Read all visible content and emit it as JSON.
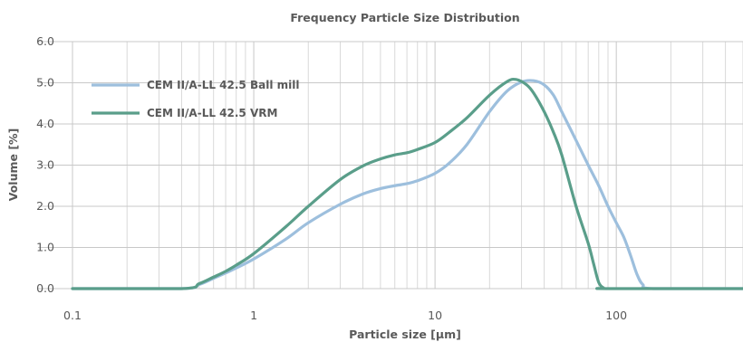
{
  "chart_data": {
    "type": "line",
    "title": "Frequency Particle Size Distribution",
    "xlabel": "Particle size [µm]",
    "ylabel": "Volume [%]",
    "x_scale": "log",
    "xlim": [
      0.1,
      500
    ],
    "ylim": [
      0,
      6
    ],
    "x_ticks": [
      0.1,
      1,
      10,
      100
    ],
    "x_tick_labels": [
      "0.1",
      "1",
      "10",
      "100"
    ],
    "y_ticks": [
      0,
      1,
      2,
      3,
      4,
      5,
      6
    ],
    "y_tick_labels": [
      "0.0",
      "1.0",
      "2.0",
      "3.0",
      "4.0",
      "5.0",
      "6.0"
    ],
    "grid": true,
    "legend_position": "top-left",
    "series": [
      {
        "name": "CEM II/A-LL 42.5 Ball mill",
        "color": "#9dbfdd",
        "points": [
          [
            0.1,
            0
          ],
          [
            0.4,
            0
          ],
          [
            0.5,
            0.1
          ],
          [
            0.6,
            0.25
          ],
          [
            0.7,
            0.38
          ],
          [
            0.8,
            0.5
          ],
          [
            1.0,
            0.72
          ],
          [
            1.5,
            1.2
          ],
          [
            2,
            1.6
          ],
          [
            3,
            2.05
          ],
          [
            4,
            2.3
          ],
          [
            5,
            2.43
          ],
          [
            6,
            2.5
          ],
          [
            7,
            2.55
          ],
          [
            8,
            2.62
          ],
          [
            10,
            2.8
          ],
          [
            12,
            3.05
          ],
          [
            15,
            3.5
          ],
          [
            20,
            4.3
          ],
          [
            25,
            4.8
          ],
          [
            30,
            5.02
          ],
          [
            35,
            5.05
          ],
          [
            40,
            4.95
          ],
          [
            45,
            4.7
          ],
          [
            50,
            4.3
          ],
          [
            60,
            3.6
          ],
          [
            70,
            3.0
          ],
          [
            80,
            2.5
          ],
          [
            90,
            2.0
          ],
          [
            100,
            1.6
          ],
          [
            110,
            1.25
          ],
          [
            120,
            0.8
          ],
          [
            130,
            0.35
          ],
          [
            140,
            0.1
          ],
          [
            160,
            0
          ],
          [
            500,
            0
          ]
        ]
      },
      {
        "name": "CEM II/A-LL 42.5 VRM",
        "color": "#5a9e8a",
        "points": [
          [
            0.1,
            0
          ],
          [
            0.4,
            0
          ],
          [
            0.5,
            0.12
          ],
          [
            0.6,
            0.28
          ],
          [
            0.7,
            0.42
          ],
          [
            0.8,
            0.57
          ],
          [
            1.0,
            0.85
          ],
          [
            1.5,
            1.5
          ],
          [
            2,
            2.0
          ],
          [
            3,
            2.65
          ],
          [
            4,
            2.98
          ],
          [
            5,
            3.15
          ],
          [
            6,
            3.25
          ],
          [
            7,
            3.3
          ],
          [
            8,
            3.38
          ],
          [
            10,
            3.55
          ],
          [
            12,
            3.8
          ],
          [
            15,
            4.15
          ],
          [
            20,
            4.7
          ],
          [
            25,
            5.03
          ],
          [
            28,
            5.08
          ],
          [
            32,
            4.95
          ],
          [
            35,
            4.75
          ],
          [
            40,
            4.3
          ],
          [
            45,
            3.8
          ],
          [
            50,
            3.25
          ],
          [
            60,
            2.0
          ],
          [
            70,
            1.1
          ],
          [
            75,
            0.6
          ],
          [
            80,
            0.15
          ],
          [
            85,
            0.02
          ],
          [
            90,
            0
          ],
          [
            500,
            0
          ]
        ]
      }
    ]
  }
}
